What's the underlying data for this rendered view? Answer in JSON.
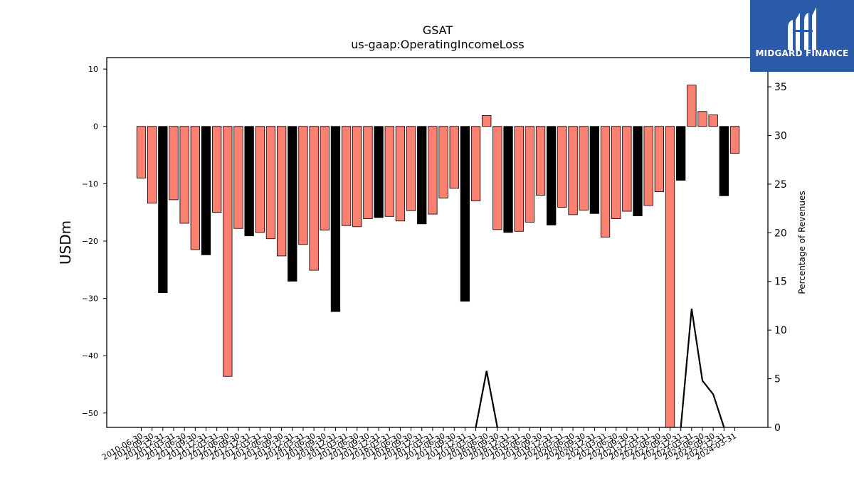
{
  "chart_data": {
    "type": "bar",
    "title": "GSAT",
    "subtitle": "us-gaap:OperatingIncomeLoss",
    "ylabel": "USDm",
    "y2label": "Percentage of Revenues",
    "ylim": [
      -52.5,
      12
    ],
    "y2lim": [
      0,
      38
    ],
    "yticks": [
      10,
      0,
      -10,
      -20,
      -30,
      -40,
      -50
    ],
    "y2ticks": [
      0,
      5,
      10,
      15,
      20,
      25,
      30,
      35
    ],
    "grid": false,
    "colors": {
      "quarter": "#fa8072",
      "year_end": "#000000",
      "line": "#000000"
    },
    "categories": [
      "2010-06-30",
      "2010-09-30",
      "2010-12-31",
      "2011-03-31",
      "2011-06-30",
      "2011-09-30",
      "2011-12-31",
      "2012-03-31",
      "2012-06-30",
      "2012-09-30",
      "2012-12-31",
      "2013-03-31",
      "2013-06-30",
      "2013-09-30",
      "2013-12-31",
      "2014-03-31",
      "2014-06-30",
      "2014-09-30",
      "2014-12-31",
      "2015-03-31",
      "2015-06-30",
      "2015-09-30",
      "2015-12-31",
      "2016-03-31",
      "2016-06-30",
      "2016-09-30",
      "2016-12-31",
      "2017-03-31",
      "2017-06-30",
      "2017-09-30",
      "2017-12-31",
      "2018-03-31",
      "2018-06-30",
      "2018-09-30",
      "2018-12-31",
      "2019-03-31",
      "2019-06-30",
      "2019-09-30",
      "2019-12-31",
      "2020-03-31",
      "2020-06-30",
      "2020-09-30",
      "2020-12-31",
      "2021-03-31",
      "2021-06-30",
      "2021-09-30",
      "2021-12-31",
      "2022-03-31",
      "2022-06-30",
      "2022-09-30",
      "2022-12-31",
      "2023-03-31",
      "2023-06-30",
      "2023-09-30",
      "2023-12-31",
      "2024-03-31"
    ],
    "xtick_labels": [
      "2010-06-30",
      "2010-09-30",
      "2010-12-31",
      "2011-03-31",
      "2011-06-30",
      "2011-09-30",
      "2011-12-31",
      "2012-03-31",
      "2012-06-30",
      "2012-09-30",
      "2012-12-31",
      "2013-03-31",
      "2013-06-30",
      "2013-09-30",
      "2013-12-31",
      "2014-03-31",
      "2014-06-30",
      "2014-09-30",
      "2014-12-31",
      "2015-03-31",
      "2015-06-30",
      "2015-09-30",
      "2015-12-31",
      "2016-03-31",
      "2016-06-30",
      "2016-09-30",
      "2016-12-31",
      "2017-03-31",
      "2017-06-30",
      "2017-09-30",
      "2017-12-31",
      "2018-03-31",
      "2018-06-30",
      "2018-09-30",
      "2018-12-31",
      "2019-03-31",
      "2019-06-30",
      "2019-09-30",
      "2019-12-31",
      "2020-03-31",
      "2020-06-30",
      "2020-09-30",
      "2020-12-31",
      "2021-03-31",
      "2021-06-30",
      "2021-09-30",
      "2021-12-31",
      "2022-03-31",
      "2022-06-30",
      "2022-09-30",
      "2022-12-31",
      "2023-03-31",
      "2023-06-30",
      "2023-09-30",
      "2023-12-31",
      "2024-03-31"
    ],
    "values": [
      -9.0,
      -13.4,
      -29.0,
      -12.8,
      -16.9,
      -21.5,
      -22.4,
      -15.0,
      -43.6,
      -17.8,
      -19.1,
      -18.5,
      -19.6,
      -22.6,
      -27.0,
      -20.6,
      -25.1,
      -18.1,
      -32.3,
      -17.3,
      -17.5,
      -16.1,
      -15.9,
      -15.7,
      -16.5,
      -14.7,
      -17.0,
      -15.3,
      -12.5,
      -10.8,
      -30.5,
      -13.0,
      1.9,
      -18.0,
      -18.5,
      -18.3,
      -16.7,
      -12.0,
      -17.2,
      -14.1,
      -15.4,
      -14.6,
      -15.2,
      -19.3,
      -16.1,
      -14.8,
      -15.6,
      -13.8,
      -11.4,
      -53.0,
      -9.4,
      7.2,
      2.6,
      2.0,
      -12.1,
      -4.7
    ],
    "year_end": [
      false,
      false,
      true,
      false,
      false,
      false,
      true,
      false,
      false,
      false,
      true,
      false,
      false,
      false,
      true,
      false,
      false,
      false,
      true,
      false,
      false,
      false,
      true,
      false,
      false,
      false,
      true,
      false,
      false,
      false,
      true,
      false,
      false,
      false,
      true,
      false,
      false,
      false,
      true,
      false,
      false,
      false,
      true,
      false,
      false,
      false,
      true,
      false,
      false,
      false,
      true,
      false,
      false,
      false,
      true,
      false
    ],
    "line_series": {
      "name": "",
      "values": [
        null,
        null,
        null,
        null,
        null,
        null,
        null,
        null,
        null,
        null,
        null,
        null,
        null,
        null,
        null,
        null,
        null,
        null,
        null,
        null,
        null,
        null,
        null,
        null,
        null,
        null,
        null,
        null,
        null,
        null,
        null,
        0,
        5.8,
        0,
        null,
        null,
        null,
        null,
        null,
        null,
        null,
        null,
        null,
        null,
        null,
        null,
        null,
        null,
        null,
        null,
        0,
        12.2,
        4.8,
        3.4,
        0,
        null
      ]
    }
  },
  "logo": {
    "text": "MIDGARD FINANCE",
    "icon": "midgard-logo-icon"
  }
}
